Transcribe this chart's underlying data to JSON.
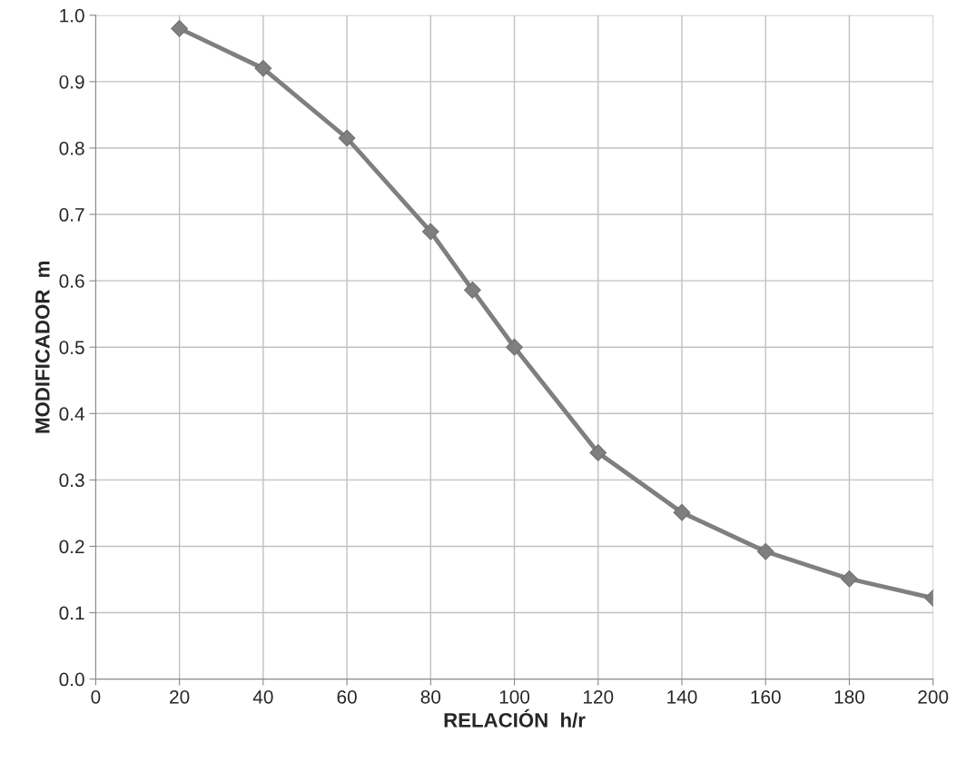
{
  "chart_data": {
    "type": "line",
    "xlabel": "RELACIÓN  h/r",
    "ylabel": "MODIFICADOR  m",
    "x": [
      20,
      40,
      60,
      80,
      90,
      100,
      120,
      140,
      160,
      180,
      200
    ],
    "series": [
      {
        "color": "#7f7f7f",
        "values": [
          0.98,
          0.92,
          0.815,
          0.674,
          0.586,
          0.5,
          0.341,
          0.251,
          0.192,
          0.151,
          0.122
        ]
      }
    ],
    "xlim": [
      0,
      200
    ],
    "xticks": [
      0,
      20,
      40,
      60,
      80,
      100,
      120,
      140,
      160,
      180,
      200
    ],
    "ylim": [
      0,
      1.0
    ],
    "yticks": [
      {
        "value": 0,
        "label": "0.0"
      },
      0.1,
      0.2,
      0.3,
      0.4,
      0.5,
      0.6,
      0.7,
      0.8,
      0.9,
      {
        "value": 1.0,
        "label": "1.0"
      }
    ],
    "grid": true,
    "marker": "diamond",
    "line_style": "solid"
  }
}
